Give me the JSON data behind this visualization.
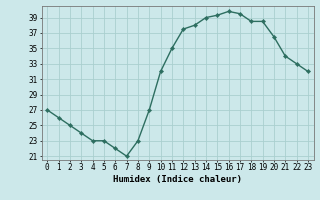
{
  "x": [
    0,
    1,
    2,
    3,
    4,
    5,
    6,
    7,
    8,
    9,
    10,
    11,
    12,
    13,
    14,
    15,
    16,
    17,
    18,
    19,
    20,
    21,
    22,
    23
  ],
  "y": [
    27,
    26,
    25,
    24,
    23,
    23,
    22,
    21,
    23,
    27,
    32,
    35,
    37.5,
    38,
    39,
    39.3,
    39.8,
    39.5,
    38.5,
    38.5,
    36.5,
    34,
    33,
    32
  ],
  "line_color": "#2d6e60",
  "marker_color": "#2d6e60",
  "bg_color": "#cce8ea",
  "grid_color": "#aacfcf",
  "xlabel": "Humidex (Indice chaleur)",
  "xlim": [
    -0.5,
    23.5
  ],
  "ylim": [
    20.5,
    40.5
  ],
  "yticks": [
    21,
    23,
    25,
    27,
    29,
    31,
    33,
    35,
    37,
    39
  ],
  "xticks": [
    0,
    1,
    2,
    3,
    4,
    5,
    6,
    7,
    8,
    9,
    10,
    11,
    12,
    13,
    14,
    15,
    16,
    17,
    18,
    19,
    20,
    21,
    22,
    23
  ],
  "xlabel_fontsize": 6.5,
  "tick_fontsize": 5.5,
  "line_width": 1.0,
  "marker_size": 2.2
}
